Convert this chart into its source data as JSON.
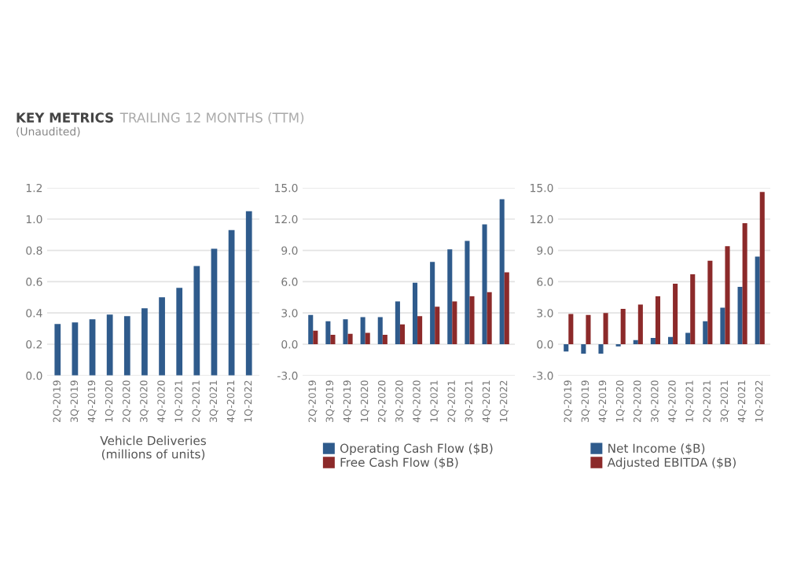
{
  "chart_data": [
    {
      "type": "bar",
      "title": "KEY METRICS",
      "subtitle": "TRAILING 12 MONTHS (TTM)",
      "annotations": [
        "(Unaudited)"
      ],
      "xlabel": "Vehicle Deliveries\n(millions of units)",
      "categories": [
        "2Q-2019",
        "3Q-2019",
        "4Q-2019",
        "1Q-2020",
        "2Q-2020",
        "3Q-2020",
        "4Q-2020",
        "1Q-2021",
        "2Q-2021",
        "3Q-2021",
        "4Q-2021",
        "1Q-2022"
      ],
      "series": [
        {
          "color": "#2f5b8c",
          "values": [
            0.33,
            0.34,
            0.36,
            0.39,
            0.38,
            0.43,
            0.5,
            0.56,
            0.7,
            0.81,
            0.93,
            1.05
          ]
        }
      ],
      "ylim": [
        0,
        1.2
      ],
      "yticks": [
        {
          "value": 0,
          "label": "0.0"
        },
        {
          "value": 0.2,
          "label": "0.2"
        },
        {
          "value": 0.4,
          "label": "0.4"
        },
        {
          "value": 0.6,
          "label": "0.6"
        },
        {
          "value": 0.8,
          "label": "0.8"
        },
        {
          "value": 1,
          "label": "1.0"
        },
        {
          "value": 1.2,
          "label": "1.2"
        }
      ],
      "grid": "y",
      "legend": false
    },
    {
      "type": "bar",
      "categories": [
        "2Q-2019",
        "3Q-2019",
        "4Q-2019",
        "1Q-2020",
        "2Q-2020",
        "3Q-2020",
        "4Q-2020",
        "1Q-2021",
        "2Q-2021",
        "3Q-2021",
        "4Q-2021",
        "1Q-2022"
      ],
      "series": [
        {
          "name": "Operating Cash Flow ($B)",
          "color": "#2f5b8c",
          "values": [
            2.8,
            2.2,
            2.4,
            2.6,
            2.6,
            4.1,
            5.9,
            7.9,
            9.1,
            9.9,
            11.5,
            13.9
          ]
        },
        {
          "name": "Free Cash Flow ($B)",
          "color": "#8c2a2a",
          "values": [
            1.3,
            0.9,
            1.0,
            1.1,
            0.9,
            1.9,
            2.7,
            3.6,
            4.1,
            4.6,
            5.0,
            6.9
          ]
        }
      ],
      "ylim": [
        -3,
        15
      ],
      "yticks": [
        {
          "value": -3,
          "label": "-3.0"
        },
        {
          "value": 0,
          "label": "0.0"
        },
        {
          "value": 3,
          "label": "3.0"
        },
        {
          "value": 6,
          "label": "6.0"
        },
        {
          "value": 9,
          "label": "9.0"
        },
        {
          "value": 12,
          "label": "12.0"
        },
        {
          "value": 15,
          "label": "15.0"
        }
      ],
      "grid": "y",
      "legend": "bottom"
    },
    {
      "type": "bar",
      "categories": [
        "2Q-2019",
        "3Q-2019",
        "4Q-2019",
        "1Q-2020",
        "2Q-2020",
        "3Q-2020",
        "4Q-2020",
        "1Q-2021",
        "2Q-2021",
        "3Q-2021",
        "4Q-2021",
        "1Q-2022"
      ],
      "series": [
        {
          "name": "Net Income ($B)",
          "color": "#2f5b8c",
          "values": [
            -0.7,
            -0.9,
            -0.9,
            -0.2,
            0.4,
            0.6,
            0.7,
            1.1,
            2.2,
            3.5,
            5.5,
            8.4
          ]
        },
        {
          "name": "Adjusted EBITDA ($B)",
          "color": "#8c2a2a",
          "values": [
            2.9,
            2.8,
            3.0,
            3.4,
            3.8,
            4.6,
            5.8,
            6.7,
            8.0,
            9.4,
            11.6,
            14.6
          ]
        }
      ],
      "ylim": [
        -3,
        15
      ],
      "yticks": [
        {
          "value": -3,
          "label": "-3.0"
        },
        {
          "value": 0,
          "label": "0.0"
        },
        {
          "value": 3,
          "label": "3.0"
        },
        {
          "value": 6,
          "label": "6.0"
        },
        {
          "value": 9,
          "label": "9.0"
        },
        {
          "value": 12,
          "label": "12.0"
        },
        {
          "value": 15,
          "label": "15.0"
        }
      ],
      "grid": "y",
      "legend": "bottom"
    }
  ]
}
